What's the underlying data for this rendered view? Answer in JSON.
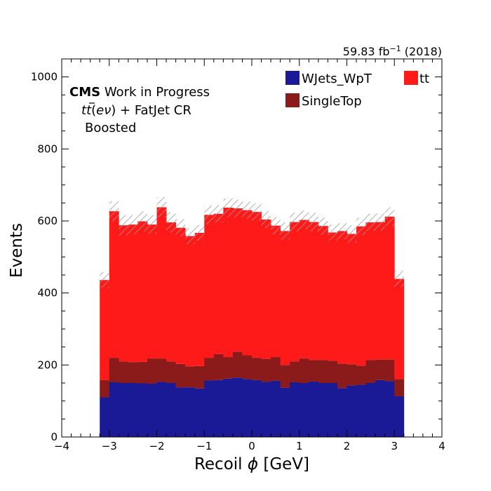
{
  "header": {
    "lumi_value": "59.83 fb",
    "lumi_exp": "−1",
    "lumi_year": " (2018)"
  },
  "labels": {
    "cms_bold": "CMS",
    "cms_rest": " Work in Progress",
    "region_pre": "t",
    "region_tbar": "t",
    "region_mid": "(",
    "region_e": "eν",
    "region_post": ") + FatJet CR",
    "boosted": "Boosted"
  },
  "colors": {
    "wjets": "#1a1a96",
    "singletop": "#8b1a1a",
    "tt": "#ff1a1a",
    "hatch": "#999999"
  },
  "chart_data": {
    "type": "bar",
    "stacked": true,
    "xlabel_pre": "Recoil ",
    "xlabel_phi": "ϕ",
    "xlabel_post": " [GeV]",
    "ylabel": "Events",
    "xlim": [
      -4,
      4
    ],
    "ylim": [
      0,
      1050
    ],
    "xticks": [
      "−4",
      "−3",
      "−2",
      "−1",
      "0",
      "1",
      "2",
      "3",
      "4"
    ],
    "yticks": [
      "0",
      "200",
      "400",
      "600",
      "800",
      "1000"
    ],
    "bin_edges": [
      -3.2,
      -3.0,
      -2.8,
      -2.6,
      -2.4,
      -2.2,
      -2.0,
      -1.8,
      -1.6,
      -1.4,
      -1.2,
      -1.0,
      -0.8,
      -0.6,
      -0.4,
      -0.2,
      0.0,
      0.2,
      0.4,
      0.6,
      0.8,
      1.0,
      1.2,
      1.4,
      1.6,
      1.8,
      2.0,
      2.2,
      2.4,
      2.6,
      2.8,
      3.0,
      3.2
    ],
    "series": [
      {
        "name": "WJets_WpT",
        "values": [
          110,
          152,
          150,
          150,
          149,
          148,
          153,
          150,
          138,
          138,
          135,
          157,
          158,
          162,
          165,
          161,
          158,
          153,
          156,
          137,
          152,
          150,
          154,
          150,
          150,
          136,
          143,
          145,
          150,
          158,
          155,
          113
        ]
      },
      {
        "name": "SingleTop",
        "values": [
          48,
          68,
          60,
          58,
          60,
          70,
          65,
          60,
          65,
          58,
          62,
          63,
          72,
          60,
          72,
          66,
          62,
          64,
          66,
          63,
          58,
          68,
          60,
          64,
          62,
          68,
          59,
          53,
          64,
          57,
          60,
          48
        ]
      },
      {
        "name": "tt",
        "values": [
          278,
          407,
          378,
          382,
          390,
          372,
          420,
          386,
          378,
          362,
          370,
          397,
          390,
          415,
          398,
          403,
          405,
          387,
          365,
          372,
          387,
          385,
          383,
          372,
          356,
          368,
          362,
          387,
          382,
          382,
          397,
          278
        ]
      }
    ],
    "uncertainty": [
      22,
      28,
      28,
      26,
      28,
      26,
      28,
      28,
      24,
      22,
      22,
      26,
      24,
      26,
      24,
      24,
      24,
      24,
      24,
      24,
      26,
      26,
      26,
      24,
      22,
      22,
      24,
      24,
      24,
      24,
      26,
      22
    ],
    "legend": [
      "WJets_WpT",
      "tt",
      "SingleTop"
    ],
    "legend_position": "top-right"
  }
}
